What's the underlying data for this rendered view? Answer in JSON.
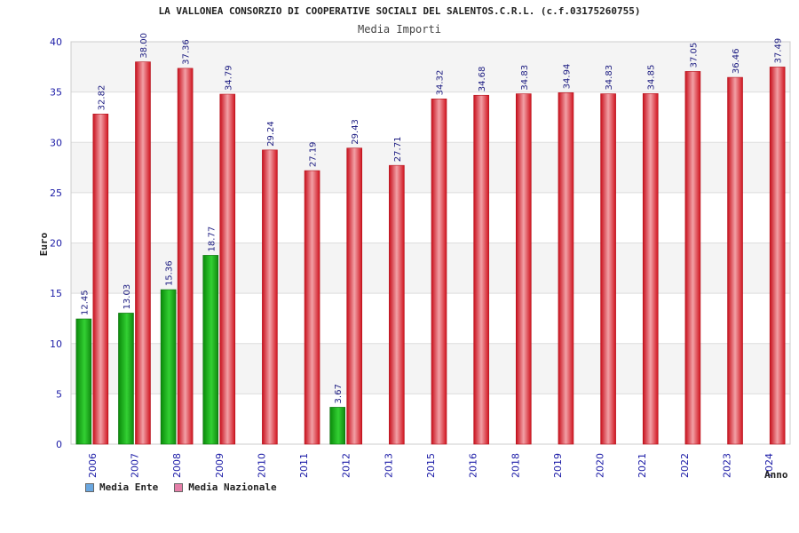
{
  "chart_data": {
    "type": "bar",
    "title": "LA VALLONEA CONSORZIO DI COOPERATIVE SOCIALI DEL SALENTOS.C.R.L. (c.f.03175260755)",
    "subtitle": "Media Importi",
    "xlabel": "Anno",
    "ylabel": "Euro",
    "ylim": [
      0,
      40
    ],
    "yticks": [
      "0",
      "5",
      "10",
      "15",
      "20",
      "25",
      "30",
      "35",
      "40"
    ],
    "categories": [
      "2006",
      "2007",
      "2008",
      "2009",
      "2010",
      "2011",
      "2012",
      "2013",
      "2015",
      "2016",
      "2018",
      "2019",
      "2020",
      "2021",
      "2022",
      "2023",
      "2024"
    ],
    "series": [
      {
        "name": "Media Ente",
        "color": "#1fb21f",
        "values": [
          12.45,
          13.03,
          15.36,
          18.77,
          null,
          null,
          3.67,
          null,
          null,
          null,
          null,
          null,
          null,
          null,
          null,
          null,
          null
        ],
        "labels": [
          "12.45",
          "13.03",
          "15.36",
          "18.77",
          "",
          "",
          "3.67",
          "",
          "",
          "",
          "",
          "",
          "",
          "",
          "",
          "",
          ""
        ]
      },
      {
        "name": "Media Nazionale",
        "color": "#e8222e",
        "values": [
          32.82,
          38.0,
          37.36,
          34.79,
          29.24,
          27.19,
          29.43,
          27.71,
          34.32,
          34.68,
          34.83,
          34.94,
          34.83,
          34.85,
          37.05,
          36.46,
          37.49
        ],
        "labels": [
          "32.82",
          "38.00",
          "37.36",
          "34.79",
          "29.24",
          "27.19",
          "29.43",
          "27.71",
          "34.32",
          "34.68",
          "34.83",
          "34.94",
          "34.83",
          "34.85",
          "37.05",
          "36.46",
          "37.49"
        ]
      }
    ],
    "legend": [
      {
        "label": "Media Ente",
        "color": "#6aa7e0"
      },
      {
        "label": "Media Nazionale",
        "color": "#e57fa8"
      }
    ],
    "grid": true,
    "legend_position": "bottom-left"
  }
}
